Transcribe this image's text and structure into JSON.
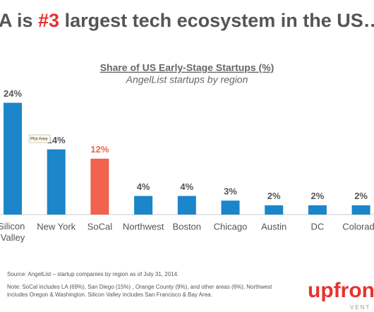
{
  "header": {
    "title_prefix": "A is ",
    "title_highlight": "#3",
    "title_suffix": " largest tech ecosystem in the US…"
  },
  "chart_data": {
    "type": "bar",
    "title": "Share of US Early-Stage Startups (%)",
    "subtitle": "AngelList startups by region",
    "categories": [
      "Silicon Valley",
      "New York",
      "SoCal",
      "Northwest",
      "Boston",
      "Chicago",
      "Austin",
      "DC",
      "Colorado"
    ],
    "values": [
      24,
      14,
      12,
      4,
      4,
      3,
      2,
      2,
      2
    ],
    "value_labels": [
      "24%",
      "14%",
      "12%",
      "4%",
      "4%",
      "3%",
      "2%",
      "2%",
      "2%"
    ],
    "colors": [
      "#1b86c9",
      "#1b86c9",
      "#f1634f",
      "#1b86c9",
      "#1b86c9",
      "#1b86c9",
      "#1b86c9",
      "#1b86c9",
      "#1b86c9"
    ],
    "label_colors": [
      "#555555",
      "#555555",
      "#f1634f",
      "#555555",
      "#555555",
      "#555555",
      "#555555",
      "#555555",
      "#555555"
    ],
    "tooltip": "Plot Area"
  },
  "footer": {
    "source": "Source: AngelList – startup companies by region as of July 31, 2014.",
    "note_lines": [
      "Note: SoCal includes LA (69%), San Diego (15%) , Orange County (9%), and other areas (6%), Northwest",
      "includes Oregon & Washington. Silicon Valley includes San Francisco & Bay Area."
    ],
    "logo": "upfron",
    "logo_sub": "VENT"
  }
}
